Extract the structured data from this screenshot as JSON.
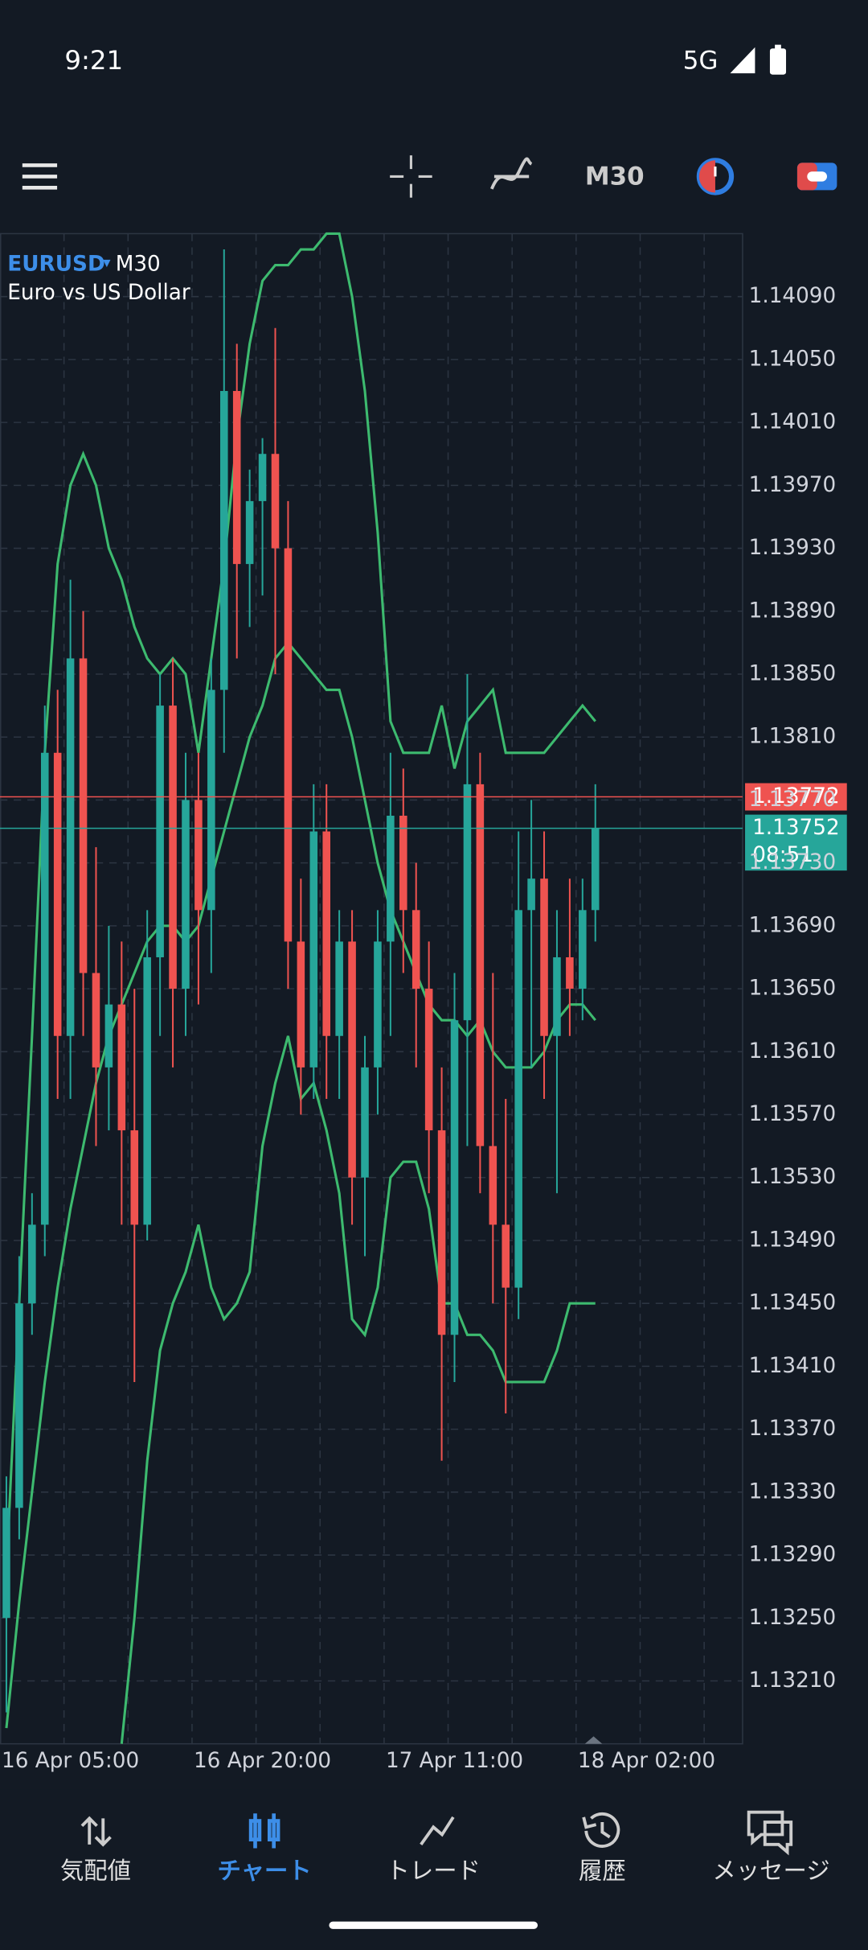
{
  "status_bar": {
    "time": "9:21",
    "network": "5G"
  },
  "toolbar": {
    "timeframe": "M30"
  },
  "chart_data": {
    "type": "candlestick",
    "symbol": "EURUSD",
    "timeframe": "M30",
    "description": "Euro vs US Dollar",
    "categories": [
      null,
      null,
      null,
      null,
      null,
      "16 Apr 05:00",
      null,
      null,
      null,
      null,
      null,
      null,
      null,
      null,
      null,
      null,
      null,
      null,
      null,
      null,
      "16 Apr 20:00",
      null,
      null,
      null,
      null,
      null,
      null,
      null,
      null,
      null,
      null,
      null,
      null,
      null,
      null,
      "17 Apr 11:00",
      null,
      null,
      null,
      null,
      null,
      null,
      null,
      null,
      null,
      null,
      null,
      null,
      null,
      null,
      "18 Apr 02:00",
      null,
      null,
      null,
      null,
      null,
      null,
      null
    ],
    "open": [
      1.1325,
      1.1332,
      1.1345,
      1.135,
      1.138,
      1.1362,
      1.1386,
      1.1366,
      1.136,
      1.1364,
      1.1356,
      1.135,
      1.1367,
      1.1383,
      1.1365,
      1.1377,
      1.137,
      1.1384,
      1.1403,
      1.1392,
      1.1396,
      1.1399,
      1.1393,
      1.1368,
      1.136,
      1.1375,
      1.1362,
      1.1368,
      1.1353,
      1.136,
      1.1368,
      1.1376,
      1.137,
      1.1365,
      1.1356,
      1.1343,
      1.1363,
      1.1378,
      1.1355,
      1.135,
      1.1346,
      1.137,
      1.1372,
      1.1362,
      1.1367,
      1.1365,
      1.137,
      null,
      null,
      null,
      null,
      null,
      null,
      null,
      null,
      null,
      null,
      null
    ],
    "high": [
      1.1334,
      1.1348,
      1.1352,
      1.1383,
      1.1384,
      1.1391,
      1.1389,
      1.1374,
      1.1369,
      1.1368,
      1.1365,
      1.137,
      1.1385,
      1.1386,
      1.138,
      1.138,
      1.1386,
      1.1412,
      1.1406,
      1.1398,
      1.14,
      1.1407,
      1.1396,
      1.1372,
      1.1378,
      1.1378,
      1.137,
      1.137,
      1.1362,
      1.137,
      1.138,
      1.1379,
      1.1373,
      1.1368,
      1.136,
      1.1366,
      1.1385,
      1.138,
      1.1366,
      1.1358,
      1.1375,
      1.1377,
      1.1375,
      1.137,
      1.1372,
      1.1372,
      1.1378,
      null,
      null,
      null,
      null,
      null,
      null,
      null,
      null,
      null,
      null,
      null
    ],
    "low": [
      1.1319,
      1.133,
      1.1343,
      1.1348,
      1.1358,
      1.1358,
      1.1362,
      1.1355,
      1.1356,
      1.135,
      1.134,
      1.1349,
      1.1362,
      1.136,
      1.1362,
      1.1364,
      1.1366,
      1.138,
      1.1386,
      1.1388,
      1.139,
      1.1385,
      1.1365,
      1.1357,
      1.1358,
      1.1358,
      1.1358,
      1.135,
      1.1348,
      1.1357,
      1.1362,
      1.1366,
      1.136,
      1.1352,
      1.1335,
      1.134,
      1.1355,
      1.1352,
      1.1345,
      1.1338,
      1.1344,
      1.136,
      1.1358,
      1.1352,
      1.1362,
      1.1363,
      1.1368,
      null,
      null,
      null,
      null,
      null,
      null,
      null,
      null,
      null,
      null,
      null
    ],
    "close": [
      1.1332,
      1.1345,
      1.135,
      1.138,
      1.1362,
      1.1386,
      1.1366,
      1.136,
      1.1364,
      1.1356,
      1.135,
      1.1367,
      1.1383,
      1.1365,
      1.1377,
      1.137,
      1.1384,
      1.1403,
      1.1392,
      1.1396,
      1.1399,
      1.1393,
      1.1368,
      1.136,
      1.1375,
      1.1362,
      1.1368,
      1.1353,
      1.136,
      1.1368,
      1.1376,
      1.137,
      1.1365,
      1.1356,
      1.1343,
      1.1363,
      1.1378,
      1.1355,
      1.135,
      1.1346,
      1.137,
      1.1372,
      1.1362,
      1.1367,
      1.1365,
      1.137,
      1.13752,
      null,
      null,
      null,
      null,
      null,
      null,
      null,
      null,
      null,
      null,
      null
    ],
    "up_color": "#26a69a",
    "down_color": "#ef5350",
    "bands": {
      "color": "#3dba6f",
      "lines": [
        [
          1.1328,
          1.1345,
          1.1362,
          1.138,
          1.1392,
          1.1397,
          1.1399,
          1.1397,
          1.1393,
          1.1391,
          1.1388,
          1.1386,
          1.1385,
          1.1386,
          1.1385,
          1.138,
          1.1386,
          1.1392,
          1.14,
          1.1406,
          1.141,
          1.1411,
          1.1411,
          1.1412,
          1.1412,
          1.1413,
          1.1413,
          1.1409,
          1.1403,
          1.1394,
          1.1382,
          1.138,
          1.138,
          1.138,
          1.1383,
          1.1379,
          1.1382,
          1.1383,
          1.1384,
          1.138,
          1.138,
          1.138,
          1.138,
          1.1381,
          1.1382,
          1.1383,
          1.1382,
          null,
          null,
          null,
          null,
          null,
          null,
          null,
          null,
          null,
          null,
          null
        ],
        [
          1.1318,
          1.1326,
          1.1333,
          1.134,
          1.1346,
          1.1351,
          1.1355,
          1.1359,
          1.1362,
          1.1364,
          1.1366,
          1.1368,
          1.1369,
          1.1369,
          1.1368,
          1.1369,
          1.1372,
          1.1375,
          1.1378,
          1.1381,
          1.1383,
          1.1386,
          1.1387,
          1.1386,
          1.1385,
          1.1384,
          1.1384,
          1.1381,
          1.1377,
          1.1373,
          1.137,
          1.1368,
          1.1366,
          1.1364,
          1.1363,
          1.1363,
          1.1362,
          1.1363,
          1.1361,
          1.136,
          1.136,
          1.136,
          1.1361,
          1.1363,
          1.1364,
          1.1364,
          1.1363,
          null,
          null,
          null,
          null,
          null,
          null,
          null,
          null,
          null,
          null,
          null
        ],
        [
          null,
          null,
          null,
          null,
          null,
          null,
          null,
          null,
          null,
          1.1317,
          1.1325,
          1.1335,
          1.1342,
          1.1345,
          1.1347,
          1.135,
          1.1346,
          1.1344,
          1.1345,
          1.1347,
          1.1355,
          1.1359,
          1.1362,
          1.1358,
          1.1359,
          1.1356,
          1.1352,
          1.1344,
          1.1343,
          1.1346,
          1.1353,
          1.1354,
          1.1354,
          1.1351,
          1.1345,
          1.1345,
          1.1343,
          1.1343,
          1.1342,
          1.134,
          1.134,
          1.134,
          1.134,
          1.1342,
          1.1345,
          1.1345,
          1.1345,
          null,
          null,
          null,
          null,
          null,
          null,
          null,
          null,
          null,
          null,
          null
        ]
      ]
    },
    "ylim": [
      1.1317,
      1.1413
    ],
    "yticks": [
      {
        "value": 1.1409,
        "label": "1.14090"
      },
      {
        "value": 1.1405,
        "label": "1.14050"
      },
      {
        "value": 1.1401,
        "label": "1.14010"
      },
      {
        "value": 1.1397,
        "label": "1.13970"
      },
      {
        "value": 1.1393,
        "label": "1.13930"
      },
      {
        "value": 1.1389,
        "label": "1.13890"
      },
      {
        "value": 1.1385,
        "label": "1.13850"
      },
      {
        "value": 1.1381,
        "label": "1.13810"
      },
      {
        "value": 1.1377,
        "label": "1.13770"
      },
      {
        "value": 1.1373,
        "label": "1.13730"
      },
      {
        "value": 1.1369,
        "label": "1.13690"
      },
      {
        "value": 1.1365,
        "label": "1.13650"
      },
      {
        "value": 1.1361,
        "label": "1.13610"
      },
      {
        "value": 1.1357,
        "label": "1.13570"
      },
      {
        "value": 1.1353,
        "label": "1.13530"
      },
      {
        "value": 1.1349,
        "label": "1.13490"
      },
      {
        "value": 1.1345,
        "label": "1.13450"
      },
      {
        "value": 1.1341,
        "label": "1.13410"
      },
      {
        "value": 1.1337,
        "label": "1.13370"
      },
      {
        "value": 1.1333,
        "label": "1.13330"
      },
      {
        "value": 1.1329,
        "label": "1.13290"
      },
      {
        "value": 1.1325,
        "label": "1.13250"
      },
      {
        "value": 1.1321,
        "label": "1.13210"
      }
    ],
    "grid": true,
    "price_lines": [
      {
        "value": 1.13772,
        "label": "1.13772",
        "color": "#ef5350"
      },
      {
        "value": 1.13752,
        "label": "1.13752",
        "color": "#26a69a"
      }
    ],
    "timer": "08:51"
  },
  "nav": [
    {
      "label": "気配値"
    },
    {
      "label": "チャート",
      "active": true
    },
    {
      "label": "トレード"
    },
    {
      "label": "履歴"
    },
    {
      "label": "メッセージ"
    }
  ]
}
